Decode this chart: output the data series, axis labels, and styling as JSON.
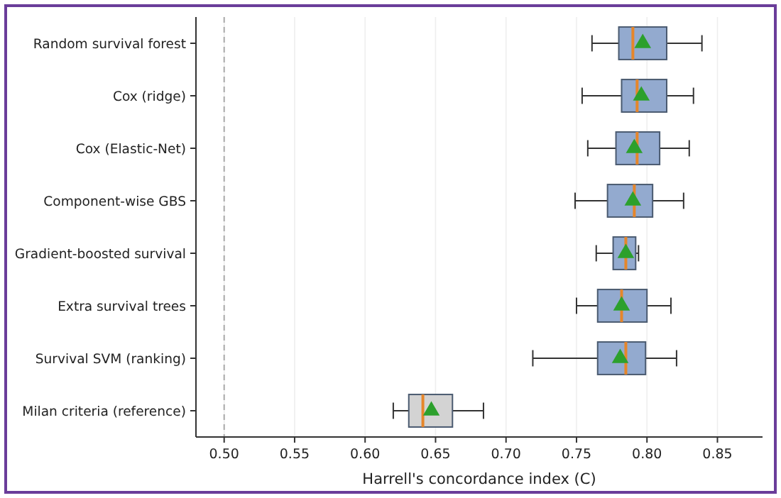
{
  "chart_data": {
    "type": "box",
    "orientation": "horizontal",
    "xlabel": "Harrell's concordance index (C)",
    "categories": [
      "Random survival forest",
      "Cox (ridge)",
      "Cox (Elastic-Net)",
      "Component-wise GBS",
      "Gradient-boosted survival",
      "Extra survival trees",
      "Survival SVM (ranking)",
      "Milan criteria (reference)"
    ],
    "boxes": [
      {
        "low": 0.761,
        "q1": 0.78,
        "median": 0.79,
        "q3": 0.814,
        "high": 0.839,
        "mean": 0.797
      },
      {
        "low": 0.754,
        "q1": 0.782,
        "median": 0.793,
        "q3": 0.814,
        "high": 0.833,
        "mean": 0.796
      },
      {
        "low": 0.758,
        "q1": 0.778,
        "median": 0.793,
        "q3": 0.809,
        "high": 0.83,
        "mean": 0.791
      },
      {
        "low": 0.749,
        "q1": 0.772,
        "median": 0.791,
        "q3": 0.804,
        "high": 0.826,
        "mean": 0.79
      },
      {
        "low": 0.764,
        "q1": 0.776,
        "median": 0.785,
        "q3": 0.792,
        "high": 0.794,
        "mean": 0.785
      },
      {
        "low": 0.75,
        "q1": 0.765,
        "median": 0.782,
        "q3": 0.8,
        "high": 0.817,
        "mean": 0.782
      },
      {
        "low": 0.719,
        "q1": 0.765,
        "median": 0.785,
        "q3": 0.799,
        "high": 0.821,
        "mean": 0.781
      },
      {
        "low": 0.62,
        "q1": 0.631,
        "median": 0.641,
        "q3": 0.662,
        "high": 0.684,
        "mean": 0.647
      }
    ],
    "colors": [
      "#93aacf",
      "#93aacf",
      "#93aacf",
      "#93aacf",
      "#93aacf",
      "#93aacf",
      "#93aacf",
      "#d3d3d3"
    ],
    "xlim": [
      0.48,
      0.882
    ],
    "xticks": [
      {
        "value": 0.5,
        "label": "0.50"
      },
      {
        "value": 0.55,
        "label": "0.55"
      },
      {
        "value": 0.6,
        "label": "0.60"
      },
      {
        "value": 0.65,
        "label": "0.65"
      },
      {
        "value": 0.7,
        "label": "0.70"
      },
      {
        "value": 0.75,
        "label": "0.75"
      },
      {
        "value": 0.8,
        "label": "0.80"
      },
      {
        "value": 0.85,
        "label": "0.85"
      }
    ],
    "grid": "x",
    "marker": "triangle",
    "ref_lines": [
      {
        "axis": "x",
        "value": 0.5,
        "label": null,
        "color": "#aaaaaa",
        "line_style": "dashed"
      }
    ]
  }
}
